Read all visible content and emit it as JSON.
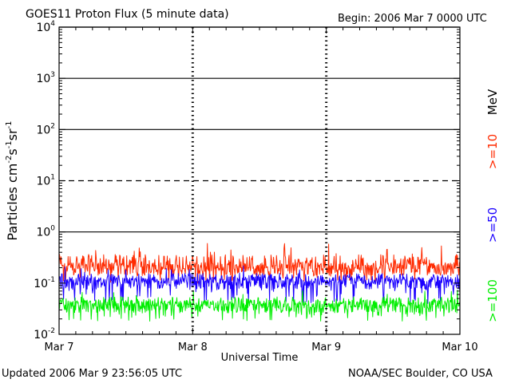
{
  "header": {
    "title": "GOES11 Proton Flux (5 minute data)",
    "begin": "Begin: 2006 Mar 7 0000 UTC"
  },
  "footer": {
    "updated": "Updated 2006 Mar  9 23:56:05 UTC",
    "credit": "NOAA/SEC Boulder, CO USA"
  },
  "chart_data": {
    "type": "line",
    "title": "GOES11 Proton Flux (5 minute data)",
    "xlabel": "Universal Time",
    "ylabel": "Particles cm-2s-1sr-1",
    "yscale": "log",
    "ylim": [
      0.01,
      10000
    ],
    "xlim": [
      0,
      3
    ],
    "x_ticks": [
      {
        "x": 0,
        "label": "Mar 7"
      },
      {
        "x": 1,
        "label": "Mar 8"
      },
      {
        "x": 2,
        "label": "Mar 9"
      },
      {
        "x": 3,
        "label": "Mar 10"
      }
    ],
    "y_ticks": [
      {
        "exp": -2,
        "base": "10",
        "sup": "-2"
      },
      {
        "exp": -1,
        "base": "10",
        "sup": "-1"
      },
      {
        "exp": 0,
        "base": "10",
        "sup": "0"
      },
      {
        "exp": 1,
        "base": "10",
        "sup": "1"
      },
      {
        "exp": 2,
        "base": "10",
        "sup": "2"
      },
      {
        "exp": 3,
        "base": "10",
        "sup": "3"
      },
      {
        "exp": 4,
        "base": "10",
        "sup": "4"
      }
    ],
    "thresholds": [
      {
        "y": 1,
        "style": "solid"
      },
      {
        "y": 10,
        "style": "dashed"
      },
      {
        "y": 100,
        "style": "solid"
      },
      {
        "y": 1000,
        "style": "solid"
      },
      {
        "y": 10000,
        "style": "solid"
      }
    ],
    "grid": "vertical dashed at day boundaries",
    "legend_unit": "MeV",
    "series": [
      {
        "name": ">=10",
        "color": "#ff2a00",
        "baseline": 0.19,
        "min": 0.1,
        "max": 0.62
      },
      {
        "name": ">=50",
        "color": "#1a00ff",
        "baseline": 0.1,
        "min": 0.04,
        "max": 0.22
      },
      {
        "name": ">=100",
        "color": "#00ee00",
        "baseline": 0.035,
        "min": 0.018,
        "max": 0.075
      }
    ]
  }
}
